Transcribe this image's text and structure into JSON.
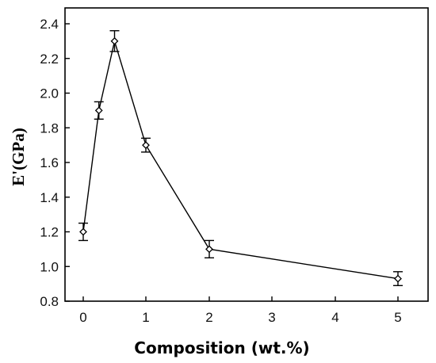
{
  "chart_data": {
    "type": "line",
    "xlabel": "Composition (wt.%)",
    "ylabel": "E'(GPa)",
    "x_ticks": [
      "0",
      "1",
      "2",
      "3",
      "4",
      "5"
    ],
    "y_ticks": [
      "0.8",
      "1.0",
      "1.2",
      "1.4",
      "1.6",
      "1.8",
      "2.0",
      "2.2",
      "2.4"
    ],
    "ylim": [
      0.8,
      2.4
    ],
    "grid": false,
    "marker": "open-diamond",
    "series": [
      {
        "points": [
          {
            "x": 0,
            "y": 1.2,
            "err": 0.05
          },
          {
            "x": 0.25,
            "y": 1.9,
            "err": 0.05
          },
          {
            "x": 0.5,
            "y": 2.3,
            "err": 0.06
          },
          {
            "x": 1,
            "y": 1.7,
            "err": 0.04
          },
          {
            "x": 2,
            "y": 1.1,
            "err": 0.05
          },
          {
            "x": 5,
            "y": 0.93,
            "err": 0.04
          }
        ]
      }
    ]
  }
}
